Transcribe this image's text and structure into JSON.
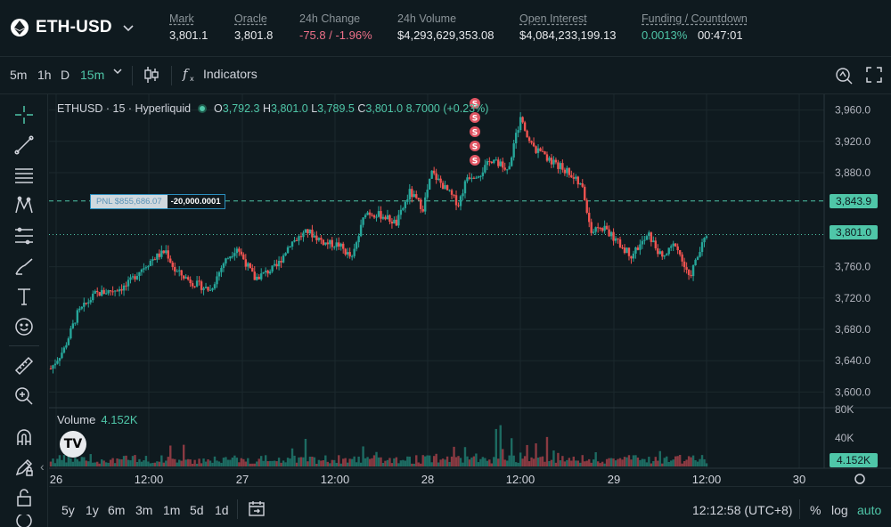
{
  "header": {
    "pair": "ETH-USD",
    "stats": [
      {
        "label": "Mark",
        "value": "3,801.1"
      },
      {
        "label": "Oracle",
        "value": "3,801.8"
      },
      {
        "label": "24h Change",
        "value": "-75.8 / -1.96%"
      },
      {
        "label": "24h Volume",
        "value": "$4,293,629,353.08"
      },
      {
        "label": "Open Interest",
        "value": "$4,084,233,199.13"
      },
      {
        "label": "Funding / Countdown",
        "funding": "0.0013%",
        "countdown": "00:47:01"
      }
    ]
  },
  "toolbar": {
    "intervals": [
      "5m",
      "1h",
      "D",
      "15m"
    ],
    "active_interval": "15m",
    "indicators_label": "Indicators"
  },
  "legend": {
    "symbol": "ETHUSD · 15 · Hyperliquid",
    "o_key": "O",
    "o": "3,792.3",
    "h_key": "H",
    "h": "3,801.0",
    "l_key": "L",
    "l": "3,789.5",
    "c_key": "C",
    "c": "3,801.0",
    "change": "8.7000 (+0.23%)"
  },
  "volume_legend": {
    "label": "Volume",
    "value": "4.152K"
  },
  "pnl": {
    "label": "PNL $855,686.07",
    "size": "-20,000.0001"
  },
  "price_axis": {
    "ticks": [
      "3,960.0",
      "3,920.0",
      "3,880.0",
      "3,760.0",
      "3,720.0",
      "3,680.0",
      "3,640.0",
      "3,600.0"
    ],
    "entry_tag": "3,843.9",
    "last_tag": "3,801.0",
    "volume_ticks": [
      "80K",
      "40K"
    ],
    "volume_tag": "4.152K"
  },
  "time_axis": [
    "26",
    "12:00",
    "27",
    "12:00",
    "28",
    "12:00",
    "29",
    "12:00",
    "30"
  ],
  "bottom": {
    "ranges": [
      "5y",
      "1y",
      "6m",
      "3m",
      "1m",
      "5d",
      "1d"
    ],
    "clock": "12:12:58 (UTC+8)",
    "percent": "%",
    "log": "log",
    "auto": "auto"
  },
  "chart_data": {
    "type": "candlestick",
    "symbol": "ETHUSD",
    "interval": "15",
    "y_range": [
      3580,
      3980
    ],
    "entry_price": 3843.9,
    "last_price": 3801.0,
    "sell_markers": 5,
    "path_points": [
      {
        "x": 0,
        "y": 3630
      },
      {
        "x": 6,
        "y": 3655
      },
      {
        "x": 12,
        "y": 3700
      },
      {
        "x": 20,
        "y": 3725
      },
      {
        "x": 28,
        "y": 3730
      },
      {
        "x": 34,
        "y": 3735
      },
      {
        "x": 40,
        "y": 3755
      },
      {
        "x": 46,
        "y": 3770
      },
      {
        "x": 52,
        "y": 3780
      },
      {
        "x": 56,
        "y": 3755
      },
      {
        "x": 64,
        "y": 3740
      },
      {
        "x": 72,
        "y": 3730
      },
      {
        "x": 78,
        "y": 3765
      },
      {
        "x": 84,
        "y": 3785
      },
      {
        "x": 92,
        "y": 3745
      },
      {
        "x": 102,
        "y": 3760
      },
      {
        "x": 108,
        "y": 3790
      },
      {
        "x": 116,
        "y": 3805
      },
      {
        "x": 124,
        "y": 3790
      },
      {
        "x": 130,
        "y": 3788
      },
      {
        "x": 136,
        "y": 3770
      },
      {
        "x": 142,
        "y": 3830
      },
      {
        "x": 150,
        "y": 3825
      },
      {
        "x": 156,
        "y": 3815
      },
      {
        "x": 162,
        "y": 3855
      },
      {
        "x": 168,
        "y": 3835
      },
      {
        "x": 172,
        "y": 3880
      },
      {
        "x": 178,
        "y": 3860
      },
      {
        "x": 184,
        "y": 3840
      },
      {
        "x": 188,
        "y": 3875
      },
      {
        "x": 194,
        "y": 3880
      },
      {
        "x": 200,
        "y": 3900
      },
      {
        "x": 206,
        "y": 3880
      },
      {
        "x": 212,
        "y": 3950
      },
      {
        "x": 218,
        "y": 3910
      },
      {
        "x": 226,
        "y": 3895
      },
      {
        "x": 234,
        "y": 3880
      },
      {
        "x": 240,
        "y": 3860
      },
      {
        "x": 244,
        "y": 3805
      },
      {
        "x": 250,
        "y": 3810
      },
      {
        "x": 256,
        "y": 3790
      },
      {
        "x": 262,
        "y": 3775
      },
      {
        "x": 270,
        "y": 3800
      },
      {
        "x": 276,
        "y": 3770
      },
      {
        "x": 282,
        "y": 3790
      },
      {
        "x": 288,
        "y": 3745
      },
      {
        "x": 296,
        "y": 3801
      }
    ]
  }
}
